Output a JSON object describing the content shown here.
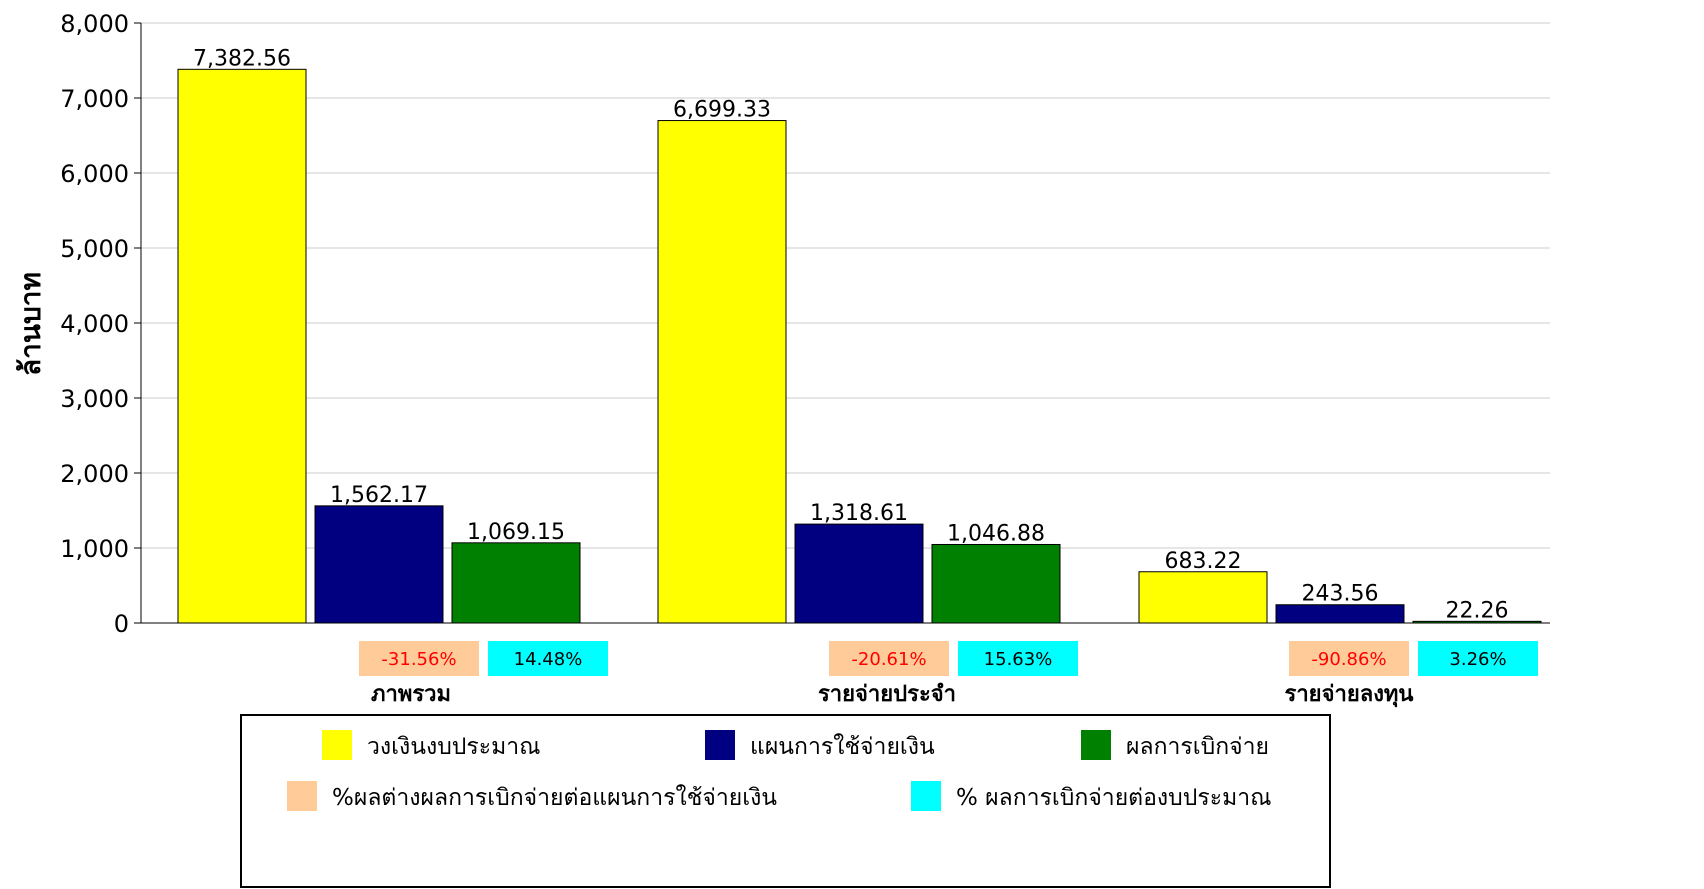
{
  "chart_data": {
    "type": "bar",
    "ylabel": "ล้านบาท",
    "ylim": [
      0,
      8000
    ],
    "yticks": [
      "0",
      "1,000",
      "2,000",
      "3,000",
      "4,000",
      "5,000",
      "6,000",
      "7,000",
      "8,000"
    ],
    "grid": true,
    "categories": [
      "ภาพรวม",
      "รายจ่ายประจำ",
      "รายจ่ายลงทุน"
    ],
    "series": [
      {
        "name": "วงเงินงบประมาณ",
        "color": "#FFFF00",
        "values": [
          7382.56,
          6699.33,
          683.22
        ],
        "labels": [
          "7,382.56",
          "6,699.33",
          "683.22"
        ]
      },
      {
        "name": "แผนการใช้จ่ายเงิน",
        "color": "#000080",
        "values": [
          1562.17,
          1318.61,
          243.56
        ],
        "labels": [
          "1,562.17",
          "1,318.61",
          "243.56"
        ]
      },
      {
        "name": "ผลการเบิกจ่าย",
        "color": "#008000",
        "values": [
          1069.15,
          1046.88,
          22.26
        ],
        "labels": [
          "1,069.15",
          "1,046.88",
          "22.26"
        ]
      }
    ],
    "percent_series": [
      {
        "name": "%ผลต่างผลการเบิกจ่ายต่อแผนการใช้จ่ายเงิน",
        "color": "#FFCC99",
        "text_color": "#FF0000",
        "labels": [
          "-31.56%",
          "-20.61%",
          "-90.86%"
        ]
      },
      {
        "name": "% ผลการเบิกจ่ายต่องบประมาณ",
        "color": "#00FFFF",
        "text_color": "#000000",
        "labels": [
          "14.48%",
          "15.63%",
          "3.26%"
        ]
      }
    ],
    "legend": {
      "position": "bottom"
    }
  }
}
